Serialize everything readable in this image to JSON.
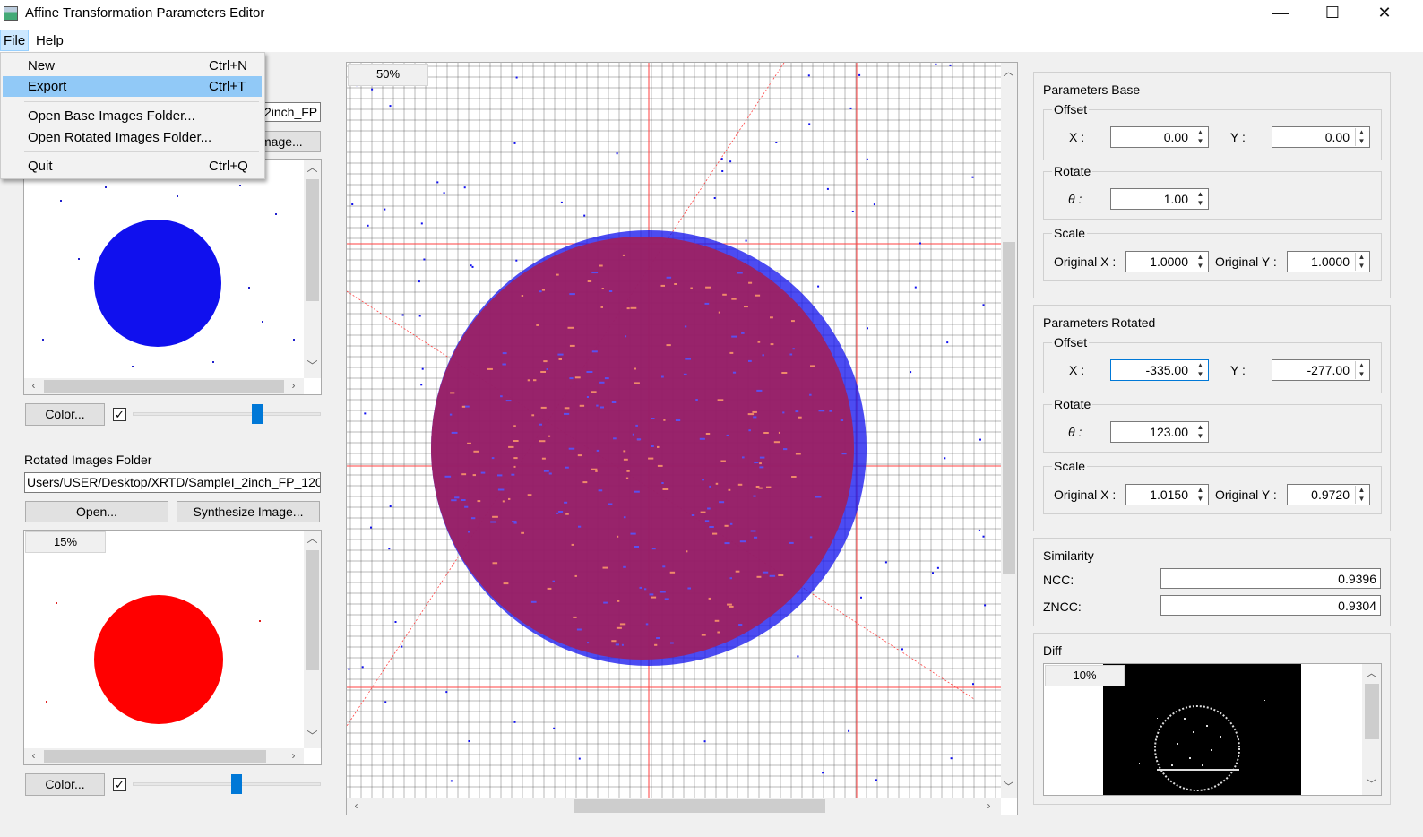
{
  "window": {
    "title": "Affine Transformation Parameters Editor",
    "minimize": "—",
    "maximize": "☐",
    "close": "✕"
  },
  "menubar": {
    "file": "File",
    "help": "Help"
  },
  "file_menu": [
    {
      "label": "New",
      "shortcut": "Ctrl+N"
    },
    {
      "label": "Export",
      "shortcut": "Ctrl+T"
    },
    {
      "label": "Open Base Images Folder...",
      "shortcut": ""
    },
    {
      "label": "Open Rotated Images Folder...",
      "shortcut": ""
    },
    {
      "label": "Quit",
      "shortcut": "Ctrl+Q"
    }
  ],
  "base_panel": {
    "path_fragment": "2inch_FP",
    "synthesize_fragment": "mage...",
    "color_button": "Color...",
    "checked": "✓",
    "slider_level": 0.66
  },
  "rotated_panel": {
    "label": "Rotated Images Folder",
    "path": "Users/USER/Desktop/XRTD/SampleI_2inch_FP_120",
    "open_button": "Open...",
    "synthesize_button": "Synthesize Image...",
    "zoom": "15%",
    "color_button": "Color...",
    "checked": "✓",
    "slider_level": 0.55
  },
  "main_view": {
    "zoom": "50%"
  },
  "params_base": {
    "title": "Parameters Base",
    "offset_label": "Offset",
    "x_label": "X :",
    "y_label": "Y :",
    "x": "0.00",
    "y": "0.00",
    "rotate_label": "Rotate",
    "theta_label": "θ :",
    "theta": "1.00",
    "scale_label": "Scale",
    "orig_x_label": "Original X :",
    "orig_y_label": "Original Y :",
    "scale_x": "1.0000",
    "scale_y": "1.0000"
  },
  "params_rotated": {
    "title": "Parameters Rotated",
    "offset_label": "Offset",
    "x_label": "X :",
    "y_label": "Y :",
    "x": "-335.00",
    "y": "-277.00",
    "rotate_label": "Rotate",
    "theta_label": "θ :",
    "theta": "123.00",
    "scale_label": "Scale",
    "orig_x_label": "Original X :",
    "orig_y_label": "Original Y :",
    "scale_x": "1.0150",
    "scale_y": "0.9720"
  },
  "similarity": {
    "title": "Similarity",
    "ncc_label": "NCC:",
    "ncc": "0.9396",
    "zncc_label": "ZNCC:",
    "zncc": "0.9304"
  },
  "diff": {
    "title": "Diff",
    "zoom": "10%"
  },
  "colors": {
    "base_circle": "#1010ee",
    "rotated_circle": "#ff0000",
    "overlay_circle": "#9e2060",
    "grid_line": "#444444",
    "guide_line": "#ff4040",
    "accent": "#0078d7"
  }
}
